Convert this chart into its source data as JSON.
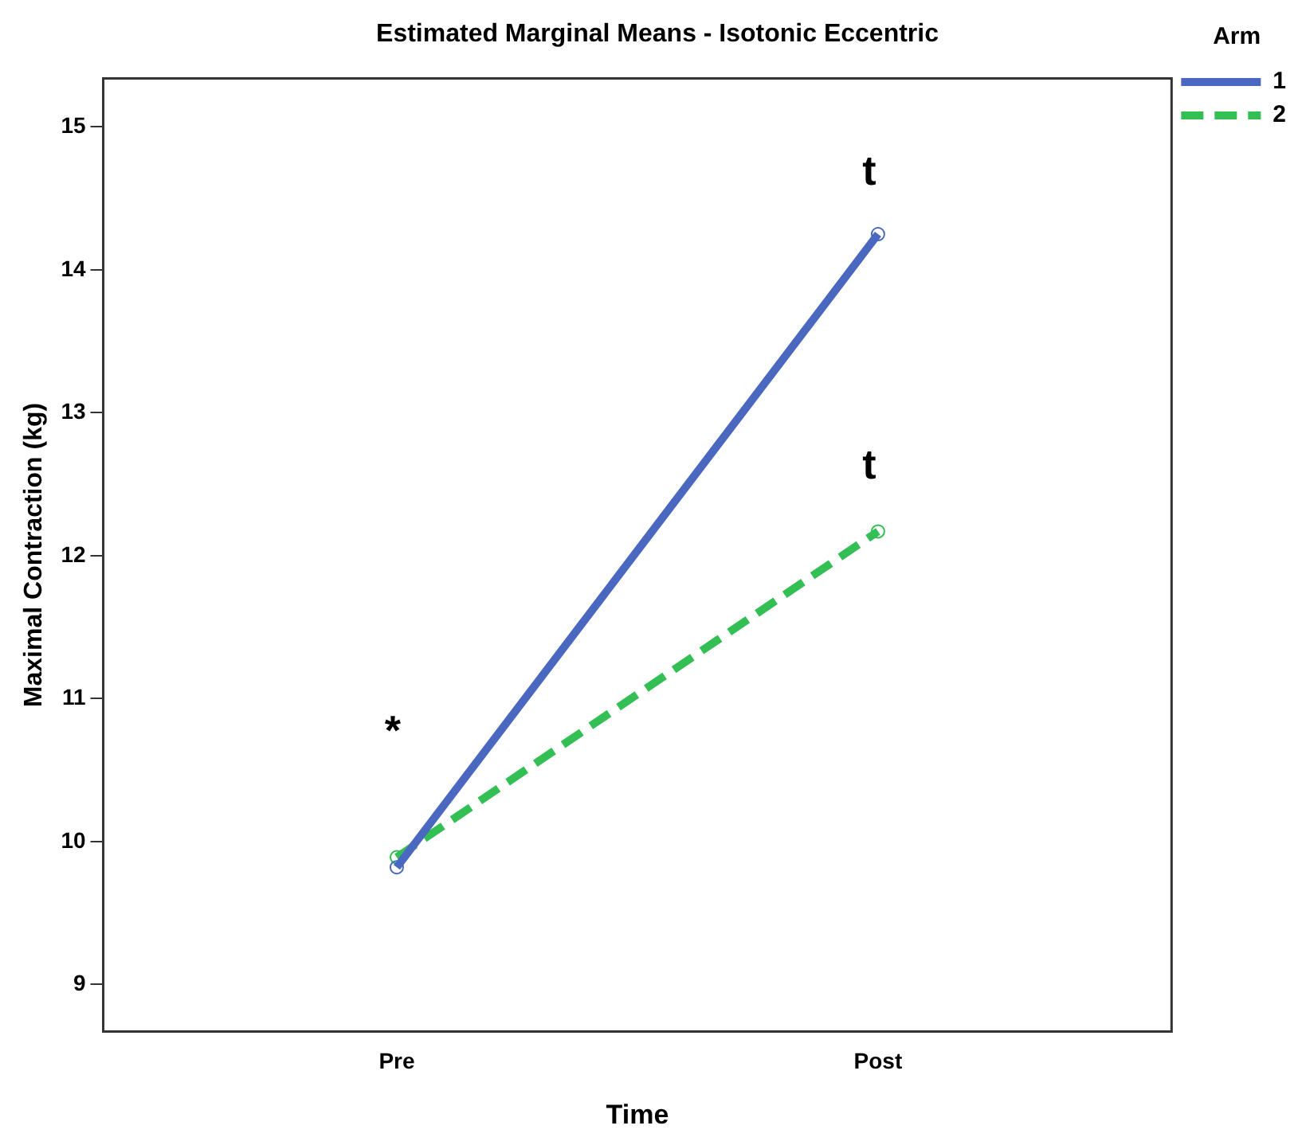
{
  "chart_data": {
    "type": "line",
    "title": "Estimated Marginal Means - Isotonic Eccentric",
    "xlabel": "Time",
    "ylabel": "Maximal Contraction (kg)",
    "legend_title": "Arm",
    "categories": [
      "Pre",
      "Post"
    ],
    "series": [
      {
        "name": "1",
        "color": "#4a68bf",
        "values": [
          9.82,
          14.25
        ],
        "line_style": "solid"
      },
      {
        "name": "2",
        "color": "#33bf54",
        "values": [
          9.89,
          12.17
        ],
        "line_style": "dashed"
      }
    ],
    "ylim": [
      8.67,
      15.34
    ],
    "yticks": [
      9,
      10,
      11,
      12,
      13,
      14,
      15
    ],
    "grid": false,
    "legend": "top right",
    "marker": "circle",
    "annotations": [
      "t",
      "t",
      "*"
    ]
  }
}
